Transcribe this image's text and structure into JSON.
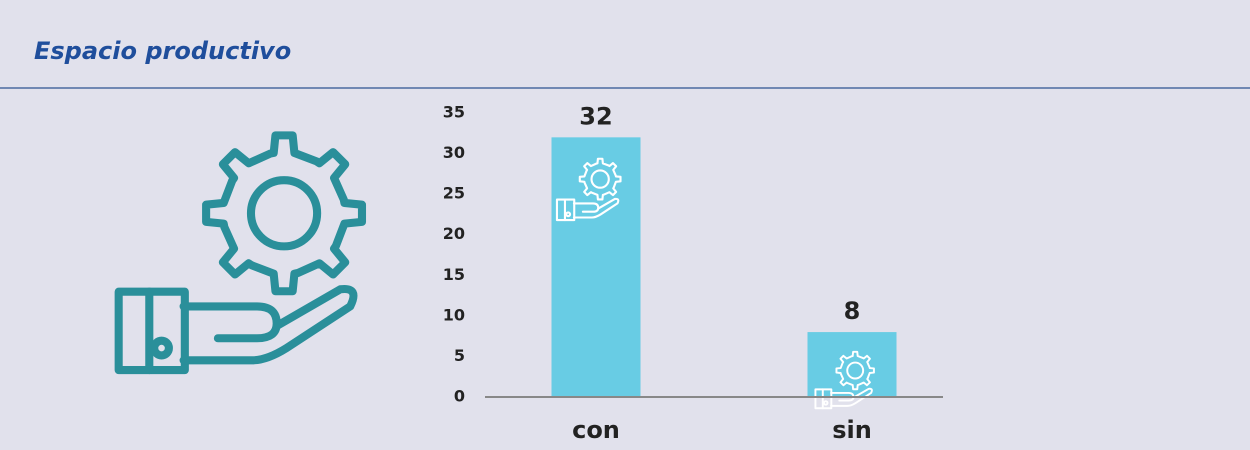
{
  "header": {
    "title": "Espacio productivo"
  },
  "chart_data": {
    "type": "bar",
    "categories": [
      "con",
      "sin"
    ],
    "values": [
      32,
      8
    ],
    "color": "#68cce4",
    "ylim": [
      0,
      35
    ],
    "yticks": [
      0,
      5,
      10,
      15,
      20,
      25,
      30,
      35
    ]
  }
}
